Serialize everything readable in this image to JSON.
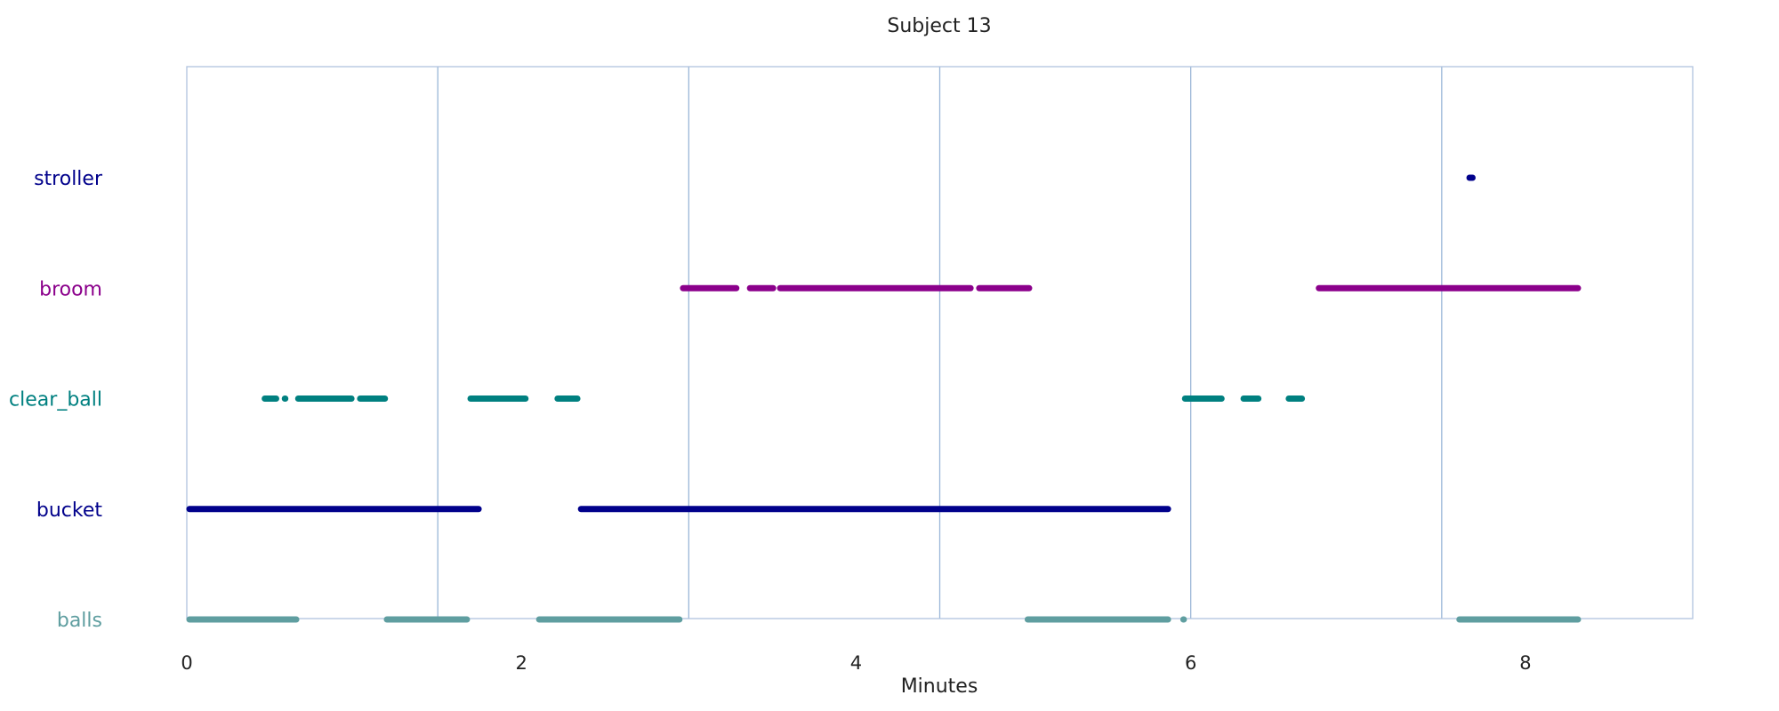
{
  "chart_data": {
    "type": "timeline",
    "title": "Subject 13",
    "xlabel": "Minutes",
    "xlim": [
      0,
      9
    ],
    "x_ticks": [
      {
        "value": 0,
        "label": "0"
      },
      {
        "value": 2,
        "label": "2"
      },
      {
        "value": 4,
        "label": "4"
      },
      {
        "value": 6,
        "label": "6"
      },
      {
        "value": 8,
        "label": "8"
      }
    ],
    "vertical_lines": [
      1.5,
      3.0,
      4.5,
      6.0,
      7.5
    ],
    "grid": false,
    "colors": {
      "frame": "#b0c4de",
      "vline": "#9ab6d8"
    },
    "categories": [
      "stroller",
      "broom",
      "clear_ball",
      "bucket",
      "balls"
    ],
    "series": [
      {
        "name": "stroller",
        "color": "#00008b",
        "intervals": [
          [
            7.65,
            7.7
          ]
        ]
      },
      {
        "name": "broom",
        "color": "#8b008b",
        "intervals": [
          [
            2.95,
            3.3
          ],
          [
            3.35,
            3.52
          ],
          [
            3.53,
            4.7
          ],
          [
            4.72,
            5.05
          ],
          [
            6.75,
            8.33
          ]
        ]
      },
      {
        "name": "clear_ball",
        "color": "#008080",
        "intervals": [
          [
            0.45,
            0.55
          ],
          [
            0.57,
            0.6
          ],
          [
            0.65,
            1.0
          ],
          [
            1.02,
            1.2
          ],
          [
            1.68,
            2.04
          ],
          [
            2.2,
            2.35
          ],
          [
            5.95,
            6.2
          ],
          [
            6.3,
            6.42
          ],
          [
            6.57,
            6.68
          ]
        ]
      },
      {
        "name": "bucket",
        "color": "#00008b",
        "intervals": [
          [
            0.0,
            1.76
          ],
          [
            2.34,
            5.88
          ]
        ]
      },
      {
        "name": "balls",
        "color": "#5f9ea0",
        "intervals": [
          [
            0.0,
            0.67
          ],
          [
            1.18,
            1.69
          ],
          [
            2.09,
            2.96
          ],
          [
            5.01,
            5.88
          ],
          [
            5.94,
            5.97
          ],
          [
            7.59,
            8.33
          ]
        ]
      }
    ]
  }
}
